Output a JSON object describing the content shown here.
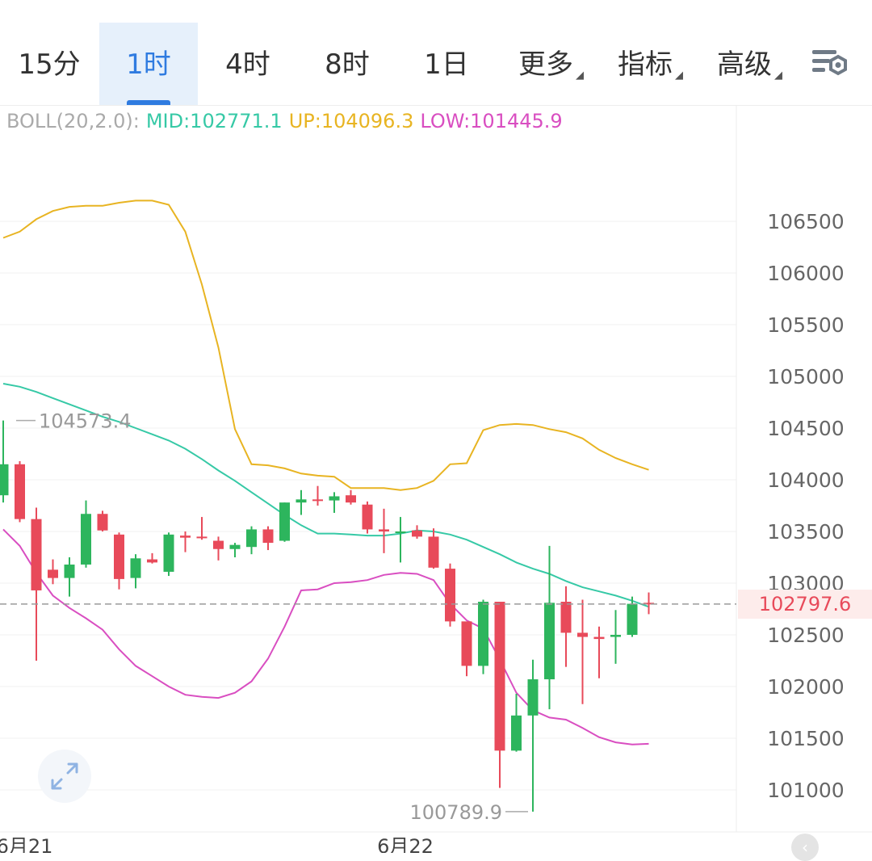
{
  "tabs": [
    {
      "label": "15分",
      "active": false,
      "dropdown": false
    },
    {
      "label": "1时",
      "active": true,
      "dropdown": false
    },
    {
      "label": "4时",
      "active": false,
      "dropdown": false
    },
    {
      "label": "8时",
      "active": false,
      "dropdown": false
    },
    {
      "label": "1日",
      "active": false,
      "dropdown": false
    },
    {
      "label": "更多",
      "active": false,
      "dropdown": true
    },
    {
      "label": "指标",
      "active": false,
      "dropdown": true
    },
    {
      "label": "高级",
      "active": false,
      "dropdown": true
    }
  ],
  "settings_icon": "chart-settings-icon",
  "indicator": {
    "name": "BOLL(20,2.0):",
    "mid": "MID:102771.1",
    "up": "UP:104096.3",
    "low": "LOW:101445.9"
  },
  "colors": {
    "up_candle": "#2db55d",
    "down_candle": "#e84a5a",
    "mid": "#36c9a6",
    "upper": "#e8b422",
    "lower": "#d94ec1",
    "accent": "#2f7be0",
    "indicator_name": "#aaaaaa"
  },
  "current_price": "102797.6",
  "high_label": "104573.4",
  "low_label": "100789.9",
  "chart_data": {
    "type": "candlestick",
    "y_ticks": [
      106500,
      106000,
      105500,
      105000,
      104500,
      104000,
      103500,
      103000,
      102500,
      102000,
      101500,
      101000
    ],
    "ylim": [
      100570,
      107520
    ],
    "x_labels": [
      {
        "text": "6月21",
        "index": 1
      },
      {
        "text": "6月22",
        "index": 24
      }
    ],
    "current_price": 102797.6,
    "high_marker": {
      "value": 104573.4,
      "index": 0
    },
    "low_marker": {
      "value": 100789.9,
      "index": 32
    },
    "candles": [
      {
        "o": 103850,
        "h": 104573.4,
        "l": 103780,
        "c": 104150
      },
      {
        "o": 104150,
        "h": 104180,
        "l": 103590,
        "c": 103620
      },
      {
        "o": 103620,
        "h": 103730,
        "l": 102250,
        "c": 102930
      },
      {
        "o": 103130,
        "h": 103230,
        "l": 102990,
        "c": 103050
      },
      {
        "o": 103050,
        "h": 103250,
        "l": 102870,
        "c": 103180
      },
      {
        "o": 103180,
        "h": 103800,
        "l": 103150,
        "c": 103670
      },
      {
        "o": 103670,
        "h": 103700,
        "l": 103500,
        "c": 103510
      },
      {
        "o": 103470,
        "h": 103490,
        "l": 102940,
        "c": 103040
      },
      {
        "o": 103050,
        "h": 103280,
        "l": 102950,
        "c": 103240
      },
      {
        "o": 103230,
        "h": 103290,
        "l": 103190,
        "c": 103200
      },
      {
        "o": 103110,
        "h": 103490,
        "l": 103070,
        "c": 103470
      },
      {
        "o": 103460,
        "h": 103500,
        "l": 103300,
        "c": 103440
      },
      {
        "o": 103450,
        "h": 103640,
        "l": 103420,
        "c": 103440
      },
      {
        "o": 103410,
        "h": 103450,
        "l": 103220,
        "c": 103330
      },
      {
        "o": 103330,
        "h": 103390,
        "l": 103250,
        "c": 103370
      },
      {
        "o": 103350,
        "h": 103550,
        "l": 103280,
        "c": 103520
      },
      {
        "o": 103520,
        "h": 103550,
        "l": 103320,
        "c": 103390
      },
      {
        "o": 103410,
        "h": 103780,
        "l": 103400,
        "c": 103780
      },
      {
        "o": 103780,
        "h": 103900,
        "l": 103660,
        "c": 103810
      },
      {
        "o": 103810,
        "h": 103940,
        "l": 103750,
        "c": 103800
      },
      {
        "o": 103800,
        "h": 103880,
        "l": 103680,
        "c": 103840
      },
      {
        "o": 103850,
        "h": 103900,
        "l": 103760,
        "c": 103780
      },
      {
        "o": 103760,
        "h": 103790,
        "l": 103480,
        "c": 103520
      },
      {
        "o": 103520,
        "h": 103720,
        "l": 103290,
        "c": 103500
      },
      {
        "o": 103500,
        "h": 103640,
        "l": 103200,
        "c": 103500
      },
      {
        "o": 103510,
        "h": 103560,
        "l": 103430,
        "c": 103450
      },
      {
        "o": 103450,
        "h": 103530,
        "l": 103140,
        "c": 103150
      },
      {
        "o": 103140,
        "h": 103190,
        "l": 102580,
        "c": 102630
      },
      {
        "o": 102630,
        "h": 102600,
        "l": 102100,
        "c": 102200
      },
      {
        "o": 102200,
        "h": 102840,
        "l": 102120,
        "c": 102820
      },
      {
        "o": 102820,
        "h": 102810,
        "l": 101020,
        "c": 101380
      },
      {
        "o": 101380,
        "h": 101930,
        "l": 101370,
        "c": 101720
      },
      {
        "o": 101720,
        "h": 102260,
        "l": 100789.9,
        "c": 102070
      },
      {
        "o": 102070,
        "h": 103360,
        "l": 101780,
        "c": 102810
      },
      {
        "o": 102820,
        "h": 102970,
        "l": 102190,
        "c": 102520
      },
      {
        "o": 102520,
        "h": 102840,
        "l": 101830,
        "c": 102480
      },
      {
        "o": 102480,
        "h": 102580,
        "l": 102080,
        "c": 102460
      },
      {
        "o": 102480,
        "h": 102740,
        "l": 102220,
        "c": 102500
      },
      {
        "o": 102500,
        "h": 102870,
        "l": 102480,
        "c": 102800
      },
      {
        "o": 102810,
        "h": 102910,
        "l": 102700,
        "c": 102797.6
      }
    ],
    "mid": [
      104930,
      104900,
      104850,
      104790,
      104730,
      104670,
      104610,
      104560,
      104500,
      104440,
      104380,
      104300,
      104200,
      104090,
      103990,
      103880,
      103770,
      103660,
      103560,
      103480,
      103480,
      103470,
      103460,
      103460,
      103480,
      103510,
      103500,
      103470,
      103420,
      103350,
      103280,
      103200,
      103140,
      103090,
      103020,
      102960,
      102920,
      102880,
      102830,
      102771.1
    ],
    "upper": [
      106340,
      106400,
      106520,
      106600,
      106640,
      106650,
      106650,
      106680,
      106700,
      106700,
      106660,
      106400,
      105890,
      105280,
      104490,
      104150,
      104140,
      104110,
      104060,
      104040,
      104030,
      103920,
      103920,
      103920,
      103900,
      103920,
      103990,
      104150,
      104160,
      104480,
      104530,
      104540,
      104530,
      104490,
      104460,
      104400,
      104290,
      104210,
      104150,
      104096.3
    ],
    "lower": [
      103520,
      103360,
      103100,
      102880,
      102760,
      102660,
      102550,
      102360,
      102200,
      102100,
      102000,
      101920,
      101900,
      101890,
      101940,
      102050,
      102270,
      102580,
      102930,
      102940,
      103000,
      103010,
      103030,
      103080,
      103100,
      103090,
      103030,
      102800,
      102640,
      102560,
      102260,
      101940,
      101770,
      101700,
      101680,
      101600,
      101510,
      101460,
      101440,
      101445.9
    ]
  }
}
